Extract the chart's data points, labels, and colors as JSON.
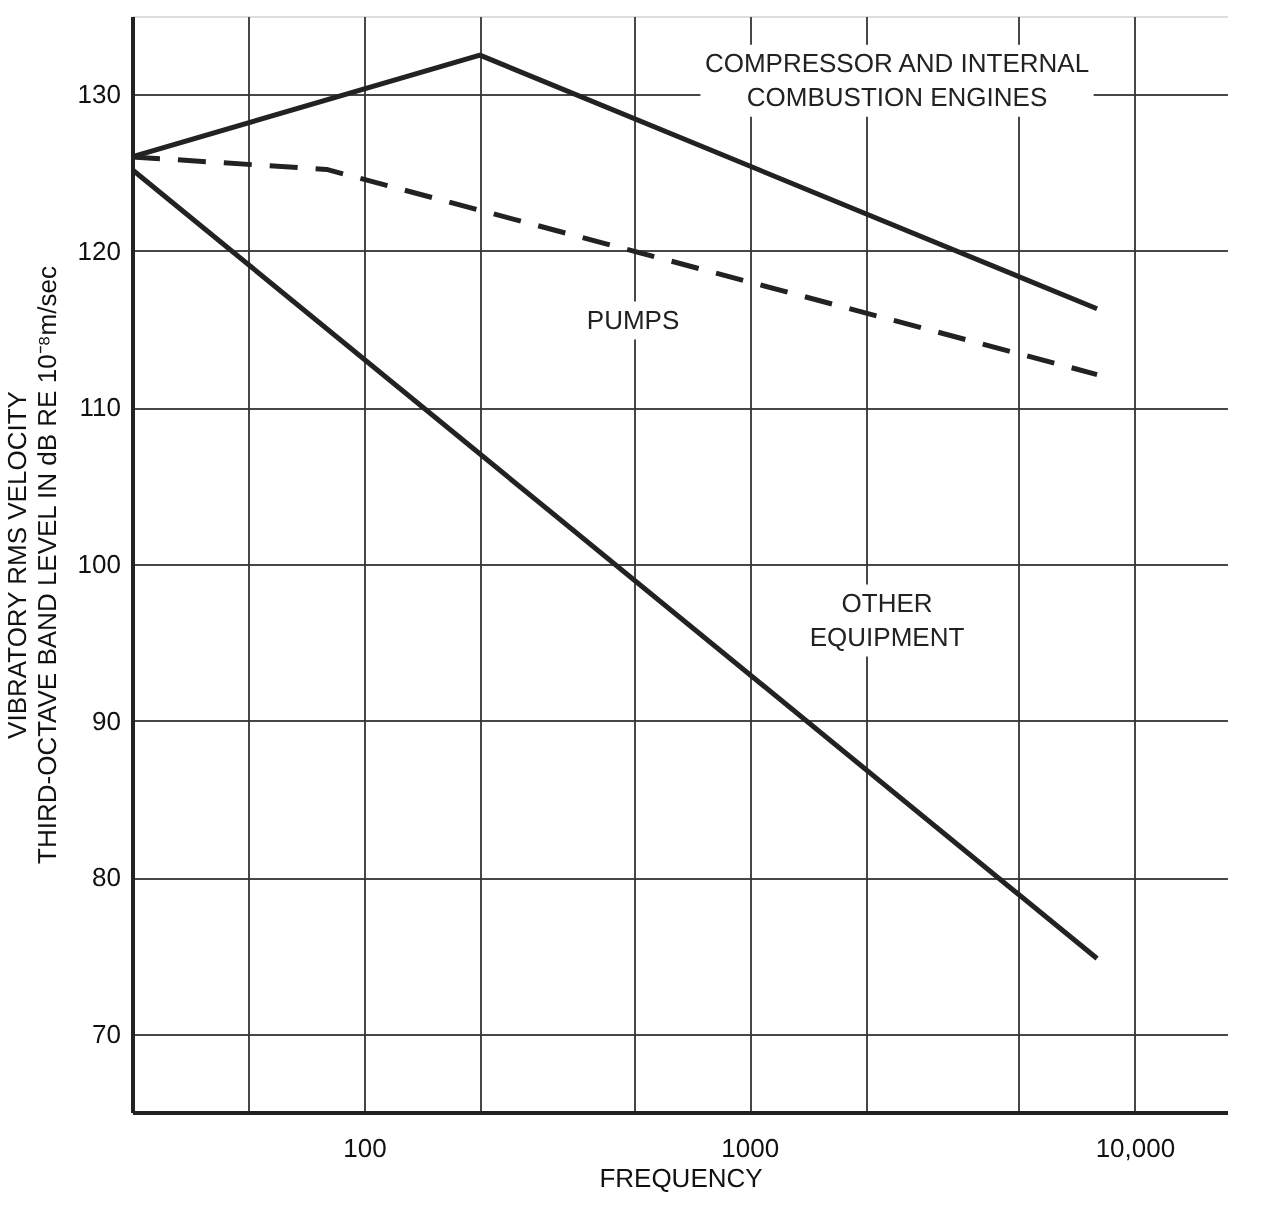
{
  "chart_data": {
    "type": "line",
    "xlabel": "FREQUENCY",
    "ylabel": [
      "VIBRATORY RMS VELOCITY",
      "THIRD-OCTAVE BAND LEVEL IN dB RE 10⁻⁸m/sec"
    ],
    "log": "x",
    "xlim": [
      25,
      17500
    ],
    "xticks": [
      {
        "value": 50,
        "label": null
      },
      100,
      {
        "value": 200,
        "label": null
      },
      {
        "value": 500,
        "label": null
      },
      1000,
      {
        "value": 2000,
        "label": null
      },
      {
        "value": 5000,
        "label": null
      },
      {
        "value": 10000,
        "label": "10,000"
      }
    ],
    "ylim": [
      65,
      135
    ],
    "yticks": [
      70,
      80,
      90,
      100,
      110,
      120,
      130
    ],
    "grid": true,
    "series": [
      {
        "name": "COMPRESSOR AND INTERNAL COMBUSTION ENGINES",
        "color": "#222222",
        "line_style": "solid",
        "x": [
          25,
          200,
          8000
        ],
        "values": [
          126,
          132.5,
          116.3
        ]
      },
      {
        "name": "PUMPS",
        "color": "#222222",
        "line_style": "dashed",
        "x": [
          25,
          80,
          8000
        ],
        "values": [
          126,
          125.2,
          112.1
        ]
      },
      {
        "name": "OTHER EQUIPMENT",
        "color": "#222222",
        "line_style": "solid",
        "x": [
          25,
          8000
        ],
        "values": [
          125.2,
          74.8
        ]
      }
    ]
  }
}
